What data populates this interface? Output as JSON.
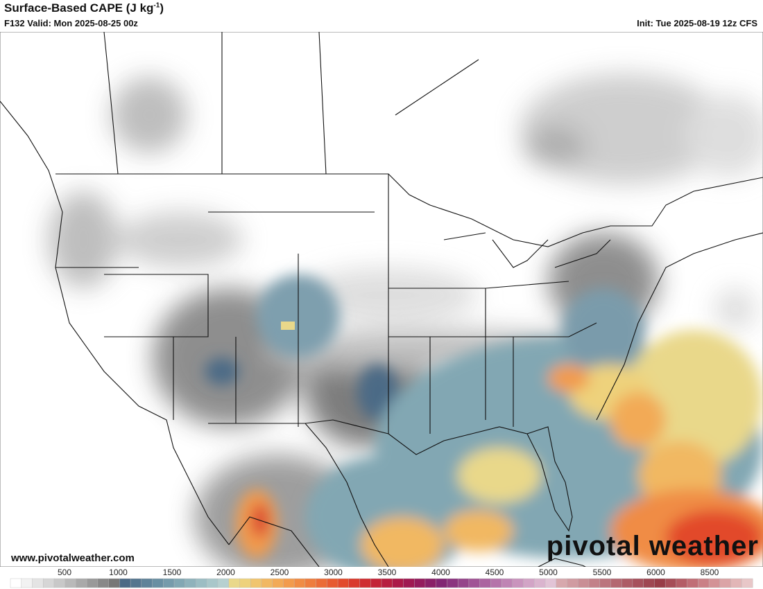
{
  "header": {
    "title": {
      "text": "Surface-Based CAPE (J kg",
      "superscript": "-1",
      "suffix": ")"
    },
    "valid": "F132 Valid: Mon 2025-08-25 00z",
    "init": "Init: Tue 2025-08-19 12z CFS"
  },
  "footer": {
    "site": "www.pivotalweather.com",
    "logo": "pivotal weather"
  },
  "colorbar": {
    "ticks": [
      500,
      1000,
      1500,
      2000,
      2500,
      3000,
      3500,
      4000,
      4500,
      5000,
      5500,
      6000,
      8500
    ],
    "colors": [
      "#ffffff",
      "#f2f2f2",
      "#e4e4e4",
      "#d6d6d6",
      "#c8c8c8",
      "#b9b9b9",
      "#a9a9a9",
      "#999999",
      "#888888",
      "#777777",
      "#4c6a86",
      "#55768f",
      "#5f8399",
      "#6a8fa2",
      "#769bab",
      "#82a7b3",
      "#8fb2bb",
      "#9cbdc3",
      "#a9c7ca",
      "#b6d0d0",
      "#e9d88a",
      "#eed27c",
      "#f0c56e",
      "#f1b862",
      "#f2aa57",
      "#f29b4d",
      "#f08c45",
      "#ee7d3e",
      "#eb6c37",
      "#e75b31",
      "#e24a2c",
      "#d93a2d",
      "#cf2d31",
      "#c32437",
      "#b71e3f",
      "#ab1a48",
      "#9f1a52",
      "#941c5d",
      "#8a2068",
      "#822673",
      "#8b347f",
      "#95448a",
      "#a05495",
      "#ab64a0",
      "#b574aa",
      "#bf84b4",
      "#c994bd",
      "#d2a4c6",
      "#dab4ce",
      "#e2c4d6",
      "#d7a8ad",
      "#d09ba1",
      "#c98e95",
      "#c28189",
      "#bb747d",
      "#b46871",
      "#ad5c66",
      "#a6515c",
      "#9f4752",
      "#983d48",
      "#a64d57",
      "#b45d66",
      "#c06e76",
      "#ca8086",
      "#d39296",
      "#dba4a6",
      "#e2b6b7",
      "#e8c7c8"
    ]
  }
}
